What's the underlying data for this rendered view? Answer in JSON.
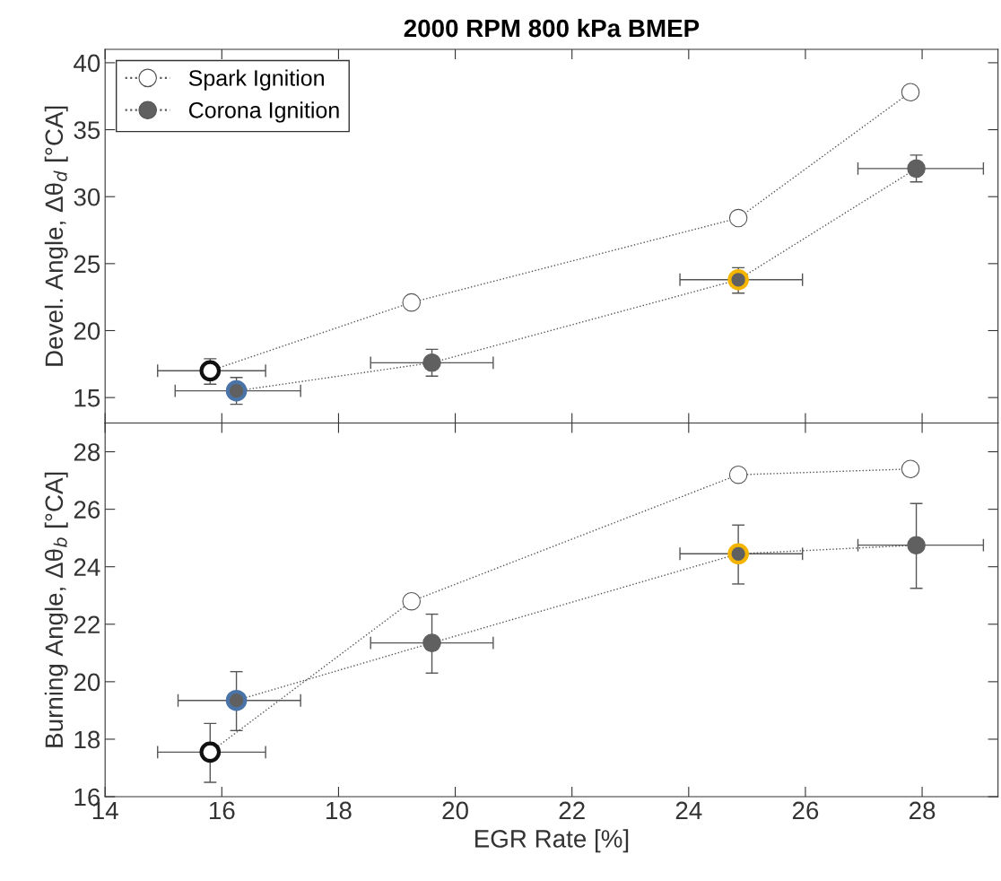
{
  "chart_data": [
    {
      "type": "line",
      "title": "2000 RPM 800 kPa BMEP",
      "ylabel": "Devel. Angle, Δθ$_{d}$ [°CA]",
      "xlim": [
        14,
        29.3
      ],
      "xticks": [
        14,
        16,
        18,
        20,
        22,
        24,
        26,
        28
      ],
      "ylim": [
        13.1,
        41
      ],
      "yticks": [
        15,
        20,
        25,
        30,
        35,
        40
      ],
      "tick_labels": "y",
      "legend": "top left",
      "marker": "circle",
      "line_style": "dotted",
      "grid": false,
      "series": [
        {
          "name": "Spark Ignition",
          "color": "#ffffff",
          "colors": [
            "#111111",
            "#555555",
            "#555555",
            "#555555"
          ],
          "x": [
            15.8,
            19.25,
            24.85,
            27.8
          ],
          "values": [
            17.0,
            22.1,
            28.4,
            37.8
          ],
          "errors": [
            [
              16.0,
              17.9
            ],
            null,
            null,
            null
          ],
          "xerrors": [
            [
              14.9,
              16.75
            ],
            null,
            null,
            null
          ]
        },
        {
          "name": "Corona Ignition",
          "color": "#606060",
          "colors": [
            "#4a74a8",
            "#606060",
            "#f5b400",
            "#606060"
          ],
          "x": [
            16.25,
            19.6,
            24.85,
            27.9
          ],
          "values": [
            15.5,
            17.6,
            23.8,
            32.1
          ],
          "errors": [
            [
              14.5,
              16.5
            ],
            [
              16.6,
              18.6
            ],
            [
              22.8,
              24.7
            ],
            [
              31.1,
              33.1
            ]
          ],
          "xerrors": [
            [
              15.2,
              17.35
            ],
            [
              18.55,
              20.65
            ],
            [
              23.85,
              25.95
            ],
            [
              26.9,
              29.05
            ]
          ]
        }
      ]
    },
    {
      "type": "line",
      "xlabel": "EGR Rate [%]",
      "ylabel": "Burning Angle, Δθ$_{b}$ [°CA]",
      "xlim": [
        14,
        29.3
      ],
      "xticks": [
        14,
        16,
        18,
        20,
        22,
        24,
        26,
        28
      ],
      "ylim": [
        16,
        29
      ],
      "yticks": [
        16,
        18,
        20,
        22,
        24,
        26,
        28
      ],
      "marker": "circle",
      "line_style": "dotted",
      "grid": false,
      "series": [
        {
          "color": "#ffffff",
          "colors": [
            "#111111",
            "#555555",
            "#555555",
            "#555555"
          ],
          "x": [
            15.8,
            19.25,
            24.85,
            27.8
          ],
          "values": [
            17.55,
            22.8,
            27.2,
            27.4
          ],
          "errors": [
            [
              16.5,
              18.55
            ],
            null,
            null,
            null
          ],
          "xerrors": [
            [
              14.9,
              16.75
            ],
            null,
            null,
            null
          ]
        },
        {
          "color": "#606060",
          "colors": [
            "#4a74a8",
            "#606060",
            "#f5b400",
            "#606060"
          ],
          "x": [
            16.25,
            19.6,
            24.85,
            27.9
          ],
          "values": [
            19.35,
            21.35,
            24.45,
            24.75
          ],
          "errors": [
            [
              18.3,
              20.35
            ],
            [
              20.3,
              22.35
            ],
            [
              23.4,
              25.45
            ],
            [
              23.25,
              26.2
            ]
          ],
          "xerrors": [
            [
              15.25,
              17.35
            ],
            [
              18.55,
              20.65
            ],
            [
              23.85,
              25.95
            ],
            [
              26.9,
              29.05
            ]
          ]
        }
      ]
    }
  ]
}
